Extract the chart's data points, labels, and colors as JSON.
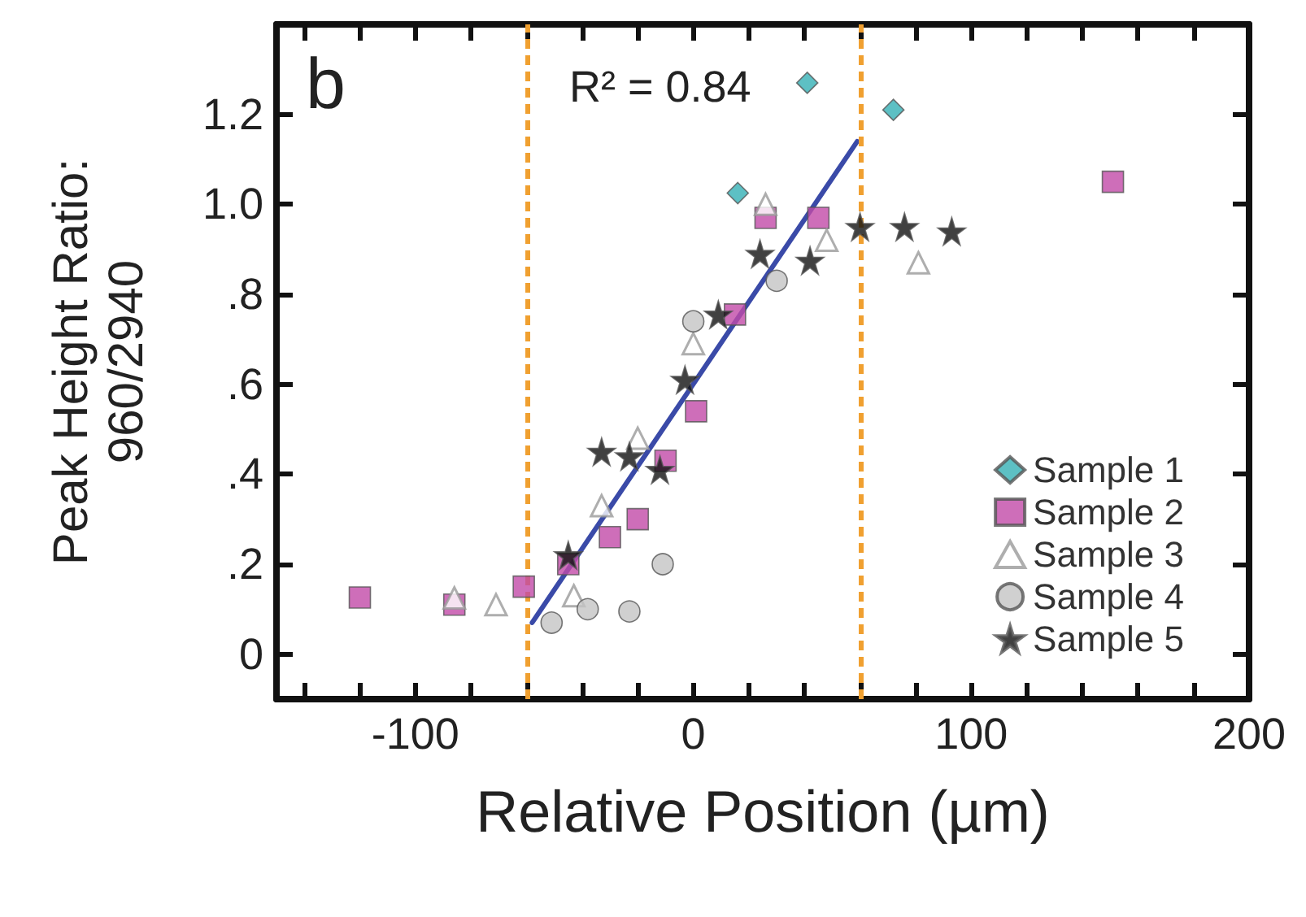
{
  "chart_data": {
    "type": "scatter",
    "xlabel": "Relative Position (µm)",
    "ylabel": "Peak Height Ratio:\n960/2940",
    "annotations": [
      "b",
      "R² = 0.84"
    ],
    "xlim": [
      -150,
      200
    ],
    "xticks": [
      {
        "value": -140,
        "label": null
      },
      {
        "value": -120,
        "label": null
      },
      -100,
      {
        "value": -80,
        "label": null
      },
      {
        "value": -60,
        "label": null
      },
      {
        "value": -40,
        "label": null
      },
      {
        "value": -20,
        "label": null
      },
      0,
      {
        "value": 20,
        "label": null
      },
      {
        "value": 40,
        "label": null
      },
      {
        "value": 60,
        "label": null
      },
      {
        "value": 80,
        "label": null
      },
      100,
      {
        "value": 120,
        "label": null
      },
      {
        "value": 140,
        "label": null
      },
      {
        "value": 160,
        "label": null
      },
      {
        "value": 180,
        "label": null
      },
      200
    ],
    "ylim": [
      -0.1,
      1.4
    ],
    "yticks": [
      0,
      {
        "value": 0.2,
        "label": ".2"
      },
      {
        "value": 0.4,
        "label": ".4"
      },
      {
        "value": 0.6,
        "label": ".6"
      },
      {
        "value": 0.8,
        "label": ".8"
      },
      {
        "value": 1.0,
        "label": "1.0"
      },
      {
        "value": 1.2,
        "label": "1.2"
      }
    ],
    "grid": false,
    "legend": "bottom right",
    "ref_lines": [
      {
        "axis": "x",
        "value": -60,
        "color": "#f0a030",
        "line_style": "dashed"
      },
      {
        "axis": "x",
        "value": 60,
        "color": "#f0a030",
        "line_style": "dashed"
      }
    ],
    "series": [
      {
        "name": "Sample 1",
        "color": "#35b0b5",
        "marker": "diamond",
        "x": [
          16,
          41,
          72
        ],
        "values": [
          1.025,
          1.27,
          1.21
        ]
      },
      {
        "name": "Sample 2",
        "color": "#c24aa8",
        "marker": "square",
        "x": [
          -120,
          -86,
          -61,
          -45,
          -30,
          -20,
          -10,
          1,
          15,
          26,
          45,
          151
        ],
        "values": [
          0.126,
          0.11,
          0.15,
          0.2,
          0.26,
          0.3,
          0.43,
          0.54,
          0.755,
          0.97,
          0.97,
          1.05
        ]
      },
      {
        "name": "Sample 3",
        "color": "#9a9a9a",
        "marker": "triangle",
        "x": [
          -86,
          -71,
          -43,
          -33,
          -20,
          0,
          26,
          48,
          81
        ],
        "values": [
          0.125,
          0.11,
          0.13,
          0.33,
          0.48,
          0.69,
          1.0,
          0.92,
          0.87
        ]
      },
      {
        "name": "Sample 4",
        "color": "#c4c4c4",
        "marker": "circle",
        "x": [
          -51,
          -38,
          -23,
          -11,
          0,
          30
        ],
        "values": [
          0.07,
          0.1,
          0.095,
          0.2,
          0.74,
          0.83
        ]
      },
      {
        "name": "Sample 5",
        "color": "#111111",
        "marker": "star",
        "x": [
          -45,
          -33,
          -23,
          -12,
          -3,
          9,
          24,
          42,
          60,
          76,
          93
        ],
        "values": [
          0.22,
          0.45,
          0.44,
          0.41,
          0.61,
          0.755,
          0.89,
          0.875,
          0.95,
          0.95,
          0.94
        ]
      },
      {
        "type": "line",
        "color": "#3a4aa8",
        "marker": "none",
        "line_style": "solid",
        "x": [
          -58,
          59
        ],
        "values": [
          0.07,
          1.14
        ]
      }
    ]
  }
}
